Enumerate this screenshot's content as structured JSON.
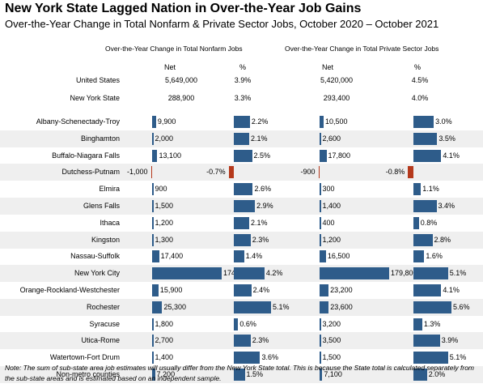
{
  "title": "New York State Lagged Nation in Over-the-Year Job Gains",
  "subtitle": "Over-the-Year Change in Total Nonfarm & Private Sector Jobs, October 2020 – October 2021",
  "groups": {
    "nonfarm_header": "Over-the-Year Change in Total Nonfarm Jobs",
    "private_header": "Over-the-Year Change in Total Private Sector Jobs",
    "net_label": "Net",
    "pct_label": "%"
  },
  "footnote": "Note: The sum of sub-state area job estimates will usually differ from the New York State total. This is because the State total is calculated separately from the sub-state areas and is estimated based on an independent sample.",
  "colors": {
    "positive_bar": "#2e5c8a",
    "negative_bar": "#b5391c",
    "shaded_row": "#efefef"
  },
  "chart_data": {
    "type": "bar",
    "title": "New York State Lagged Nation in Over-the-Year Job Gains",
    "categories": [
      "United States",
      "New York State",
      "Albany-Schenectady-Troy",
      "Binghamton",
      "Buffalo-Niagara Falls",
      "Dutchess-Putnam",
      "Elmira",
      "Glens Falls",
      "Ithaca",
      "Kingston",
      "Nassau-Suffolk",
      "New York City",
      "Orange-Rockland-Westchester",
      "Rochester",
      "Syracuse",
      "Utica-Rome",
      "Watertown-Fort Drum",
      "Non-metro counties"
    ],
    "series": [
      {
        "name": "Over-the-Year Change in Total Nonfarm Jobs – Net",
        "values": [
          5649000,
          288900,
          9900,
          2000,
          13100,
          -1000,
          900,
          1500,
          1200,
          1300,
          17400,
          174200,
          15900,
          25300,
          1800,
          2700,
          1400,
          7200
        ],
        "labels": [
          "5,649,000",
          "288,900",
          "9,900",
          "2,000",
          "13,100",
          "-1,000",
          "900",
          "1,500",
          "1,200",
          "1,300",
          "17,400",
          "174,200",
          "15,900",
          "25,300",
          "1,800",
          "2,700",
          "1,400",
          "7,200"
        ]
      },
      {
        "name": "Over-the-Year Change in Total Nonfarm Jobs – %",
        "values": [
          3.9,
          3.3,
          2.2,
          2.1,
          2.5,
          -0.7,
          2.6,
          2.9,
          2.1,
          2.3,
          1.4,
          4.2,
          2.4,
          5.1,
          0.6,
          2.3,
          3.6,
          1.5
        ],
        "labels": [
          "3.9%",
          "3.3%",
          "2.2%",
          "2.1%",
          "2.5%",
          "-0.7%",
          "2.6%",
          "2.9%",
          "2.1%",
          "2.3%",
          "1.4%",
          "4.2%",
          "2.4%",
          "5.1%",
          "0.6%",
          "2.3%",
          "3.6%",
          "1.5%"
        ]
      },
      {
        "name": "Over-the-Year Change in Total Private Sector Jobs – Net",
        "values": [
          5420000,
          293400,
          10500,
          2600,
          17800,
          -900,
          300,
          1400,
          400,
          1200,
          16500,
          179800,
          23200,
          23600,
          3200,
          3500,
          1500,
          7100
        ],
        "labels": [
          "5,420,000",
          "293,400",
          "10,500",
          "2,600",
          "17,800",
          "-900",
          "300",
          "1,400",
          "400",
          "1,200",
          "16,500",
          "179,800",
          "23,200",
          "23,600",
          "3,200",
          "3,500",
          "1,500",
          "7,100"
        ]
      },
      {
        "name": "Over-the-Year Change in Total Private Sector Jobs – %",
        "values": [
          4.5,
          4.0,
          3.0,
          3.5,
          4.1,
          -0.8,
          1.1,
          3.4,
          0.8,
          2.8,
          1.6,
          5.1,
          4.1,
          5.6,
          1.3,
          3.9,
          5.1,
          2.0
        ],
        "labels": [
          "4.5%",
          "4.0%",
          "3.0%",
          "3.5%",
          "4.1%",
          "-0.8%",
          "1.1%",
          "3.4%",
          "0.8%",
          "2.8%",
          "1.6%",
          "5.1%",
          "4.1%",
          "5.6%",
          "1.3%",
          "3.9%",
          "5.1%",
          "2.0%"
        ]
      }
    ],
    "bars_for_rows_from_index": 2,
    "legend": "none",
    "grid": false
  }
}
